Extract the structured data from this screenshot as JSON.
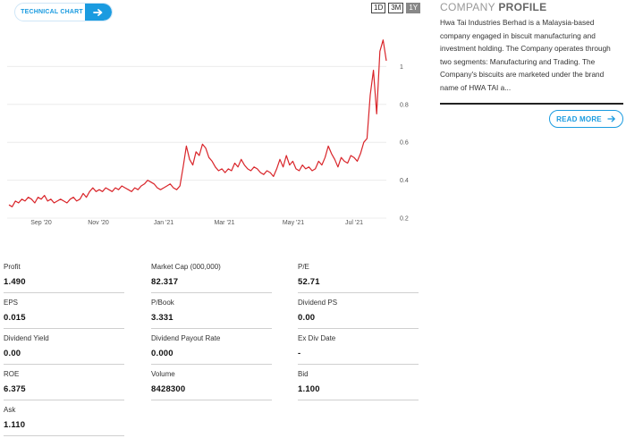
{
  "technical_chart": {
    "label": "TECHNICAL CHART"
  },
  "ranges": [
    {
      "label": "1D",
      "active": false
    },
    {
      "label": "3M",
      "active": false
    },
    {
      "label": "1Y",
      "active": true
    }
  ],
  "chart_data": {
    "type": "line",
    "x_ticks": [
      "Sep '20",
      "Nov '20",
      "Jan '21",
      "Mar '21",
      "May '21",
      "Jul '21"
    ],
    "y_ticks": [
      "0.2",
      "0.4",
      "0.6",
      "0.8",
      "1"
    ],
    "ylim": [
      0.2,
      1.2
    ],
    "grid": "horizontal",
    "color": "#d9252a",
    "series": [
      {
        "values": [
          0.27,
          0.26,
          0.29,
          0.28,
          0.3,
          0.29,
          0.31,
          0.3,
          0.28,
          0.31,
          0.3,
          0.32,
          0.29,
          0.3,
          0.28,
          0.29,
          0.3,
          0.29,
          0.28,
          0.3,
          0.31,
          0.29,
          0.3,
          0.33,
          0.31,
          0.34,
          0.36,
          0.34,
          0.35,
          0.34,
          0.36,
          0.35,
          0.34,
          0.36,
          0.35,
          0.37,
          0.36,
          0.35,
          0.34,
          0.36,
          0.35,
          0.37,
          0.38,
          0.4,
          0.39,
          0.38,
          0.36,
          0.35,
          0.36,
          0.37,
          0.38,
          0.36,
          0.35,
          0.37,
          0.47,
          0.58,
          0.51,
          0.48,
          0.55,
          0.53,
          0.59,
          0.57,
          0.52,
          0.5,
          0.47,
          0.45,
          0.46,
          0.44,
          0.46,
          0.45,
          0.49,
          0.47,
          0.51,
          0.48,
          0.46,
          0.45,
          0.47,
          0.46,
          0.44,
          0.43,
          0.45,
          0.44,
          0.42,
          0.46,
          0.51,
          0.47,
          0.53,
          0.48,
          0.5,
          0.46,
          0.45,
          0.48,
          0.46,
          0.47,
          0.45,
          0.46,
          0.5,
          0.48,
          0.52,
          0.58,
          0.54,
          0.51,
          0.47,
          0.52,
          0.5,
          0.49,
          0.53,
          0.52,
          0.5,
          0.54,
          0.6,
          0.62,
          0.85,
          0.98,
          0.75,
          1.08,
          1.14,
          1.03
        ]
      }
    ]
  },
  "profile": {
    "title_light": "COMPANY ",
    "title_bold": "PROFILE",
    "description": "Hwa Tai Industries Berhad is a Malaysia-based company engaged in biscuit manufacturing and investment holding. The Company operates through two segments: Manufacturing and Trading. The Company's biscuits are marketed under the brand name of HWA TAI a...",
    "read_more": "READ MORE"
  },
  "stats": [
    {
      "label": "Profit",
      "value": "1.490"
    },
    {
      "label": "Market Cap   (000,000)",
      "value": "82.317"
    },
    {
      "label": "P/E",
      "value": "52.71"
    },
    {
      "label": "EPS",
      "value": "0.015"
    },
    {
      "label": "P/Book",
      "value": "3.331"
    },
    {
      "label": "Dividend PS",
      "value": "0.00"
    },
    {
      "label": "Dividend Yield",
      "value": "0.00"
    },
    {
      "label": "Dividend Payout Rate",
      "value": "0.000"
    },
    {
      "label": "Ex Div Date",
      "value": "-"
    },
    {
      "label": "ROE",
      "value": "6.375"
    },
    {
      "label": "Volume",
      "value": "8428300"
    },
    {
      "label": "Bid",
      "value": "1.100"
    },
    {
      "label": "Ask",
      "value": "1.110"
    }
  ]
}
